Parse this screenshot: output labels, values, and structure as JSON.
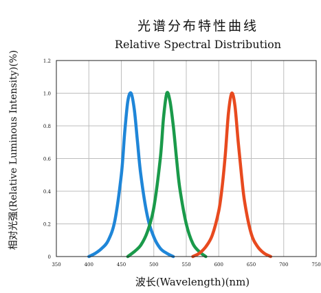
{
  "chart_data": {
    "type": "line",
    "title": "光谱分布特性曲线",
    "subtitle": "Relative Spectral Distribution",
    "xlabel": "波长(Wavelength)(nm)",
    "ylabel": "相对光强(Relative Luminous Intensity)(%)",
    "xlim": [
      350,
      750
    ],
    "ylim": [
      0,
      1.2
    ],
    "x_ticks": [
      "350",
      "400",
      "450",
      "500",
      "550",
      "600",
      "650",
      "700",
      "750"
    ],
    "y_ticks": [
      "0",
      "0.2",
      "0.4",
      "0.6",
      "0.8",
      "1.0",
      "1.2"
    ],
    "grid": true,
    "series": [
      {
        "color": "#1f86d8",
        "x": [
          400,
          410,
          420,
          430,
          440,
          450,
          455,
          460,
          465,
          470,
          475,
          480,
          490,
          500,
          510,
          520,
          530
        ],
        "values": [
          0.0,
          0.02,
          0.05,
          0.1,
          0.22,
          0.5,
          0.75,
          0.95,
          1.0,
          0.9,
          0.7,
          0.5,
          0.25,
          0.12,
          0.05,
          0.02,
          0.0
        ]
      },
      {
        "color": "#1a9a4a",
        "x": [
          460,
          470,
          480,
          490,
          500,
          510,
          515,
          520,
          525,
          530,
          535,
          540,
          550,
          560,
          570,
          580
        ],
        "values": [
          0.0,
          0.03,
          0.07,
          0.15,
          0.3,
          0.6,
          0.85,
          1.0,
          0.95,
          0.8,
          0.6,
          0.42,
          0.2,
          0.08,
          0.03,
          0.0
        ]
      },
      {
        "color": "#e84a1f",
        "x": [
          560,
          570,
          580,
          590,
          600,
          605,
          610,
          615,
          620,
          625,
          630,
          635,
          640,
          650,
          660,
          670,
          680
        ],
        "values": [
          0.0,
          0.02,
          0.06,
          0.13,
          0.28,
          0.42,
          0.62,
          0.88,
          1.0,
          0.92,
          0.7,
          0.5,
          0.33,
          0.14,
          0.06,
          0.02,
          0.0
        ]
      }
    ]
  }
}
